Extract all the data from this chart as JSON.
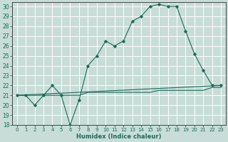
{
  "title": "",
  "xlabel": "Humidex (Indice chaleur)",
  "xlim": [
    -0.5,
    23.5
  ],
  "ylim": [
    18,
    30.4
  ],
  "x_ticks": [
    0,
    1,
    2,
    3,
    4,
    5,
    6,
    7,
    8,
    9,
    10,
    11,
    12,
    13,
    14,
    15,
    16,
    17,
    18,
    19,
    20,
    21,
    22,
    23
  ],
  "y_ticks": [
    18,
    19,
    20,
    21,
    22,
    23,
    24,
    25,
    26,
    27,
    28,
    29,
    30
  ],
  "background_color": "#c8ddd8",
  "grid_color": "#ffffff",
  "line_color": "#1a6b5a",
  "line1_x": [
    0,
    1,
    2,
    3,
    4,
    5,
    6,
    7,
    8,
    9,
    10,
    11,
    12,
    13,
    14,
    15,
    16,
    17,
    18,
    19,
    20,
    21,
    22,
    23
  ],
  "line1_y": [
    21.0,
    21.0,
    20.0,
    21.0,
    22.0,
    21.0,
    18.0,
    20.5,
    24.0,
    25.0,
    26.5,
    26.0,
    26.5,
    28.5,
    29.0,
    30.0,
    30.2,
    30.0,
    30.0,
    27.5,
    25.2,
    23.5,
    22.0,
    22.0
  ],
  "line2_x": [
    0,
    23
  ],
  "line2_y": [
    21.0,
    22.0
  ],
  "line3_x": [
    0,
    1,
    2,
    3,
    4,
    5,
    6,
    7,
    8,
    9,
    10,
    11,
    12,
    13,
    14,
    15,
    16,
    17,
    18,
    19,
    20,
    21,
    22,
    23
  ],
  "line3_y": [
    21.0,
    21.0,
    21.0,
    21.0,
    21.0,
    21.0,
    21.0,
    21.0,
    21.3,
    21.3,
    21.3,
    21.3,
    21.3,
    21.3,
    21.3,
    21.3,
    21.5,
    21.5,
    21.5,
    21.5,
    21.5,
    21.5,
    21.8,
    21.8
  ]
}
